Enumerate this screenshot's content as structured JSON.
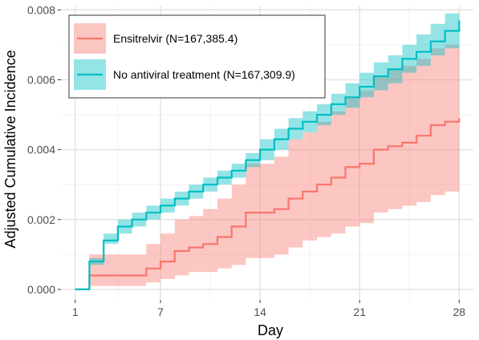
{
  "chart_data": {
    "type": "line",
    "xlabel": "Day",
    "ylabel": "Adjusted Cumulative Incidence",
    "xlim": [
      0,
      29
    ],
    "ylim": [
      -0.0003,
      0.0081
    ],
    "x_ticks": [
      1,
      7,
      14,
      21,
      28
    ],
    "x_tick_labels": [
      "1",
      "7",
      "14",
      "21",
      "28"
    ],
    "y_ticks": [
      0,
      0.002,
      0.004,
      0.006,
      0.008
    ],
    "y_tick_labels": [
      "0.000",
      "0.002",
      "0.004",
      "0.006",
      "0.008"
    ],
    "grid": true,
    "legend_position": "top-left",
    "step": true,
    "x": [
      1,
      2,
      3,
      4,
      5,
      6,
      7,
      8,
      9,
      10,
      11,
      12,
      13,
      14,
      15,
      16,
      17,
      18,
      19,
      20,
      21,
      22,
      23,
      24,
      25,
      26,
      27,
      28
    ],
    "series": [
      {
        "name": "Ensitrelvir (N=167,385.4)",
        "color": "#F8766D",
        "values": [
          0,
          0.0004,
          0.0004,
          0.0004,
          0.0004,
          0.0006,
          0.0008,
          0.0011,
          0.0012,
          0.0013,
          0.0015,
          0.0018,
          0.0022,
          0.0022,
          0.0023,
          0.0026,
          0.0028,
          0.003,
          0.0032,
          0.0035,
          0.0036,
          0.004,
          0.0041,
          0.0042,
          0.0044,
          0.0047,
          0.0048,
          0.0049
        ],
        "lower": [
          0,
          0.0001,
          0.0001,
          0.0001,
          0.0001,
          0.0002,
          0.0003,
          0.0004,
          0.0005,
          0.0005,
          0.0006,
          0.0007,
          0.0009,
          0.0009,
          0.001,
          0.0012,
          0.0014,
          0.0015,
          0.0016,
          0.0018,
          0.0019,
          0.0022,
          0.0023,
          0.0024,
          0.0025,
          0.0027,
          0.0028,
          0.0028
        ],
        "upper": [
          0,
          0.001,
          0.001,
          0.001,
          0.001,
          0.0013,
          0.0016,
          0.002,
          0.0021,
          0.0023,
          0.0026,
          0.003,
          0.0036,
          0.0036,
          0.0038,
          0.0043,
          0.0045,
          0.0048,
          0.0051,
          0.0055,
          0.0057,
          0.0061,
          0.0063,
          0.0064,
          0.0066,
          0.0069,
          0.007,
          0.0071
        ]
      },
      {
        "name": "No antiviral treatment (N=167,309.9)",
        "color": "#00BFC4",
        "values": [
          0,
          0.0008,
          0.0014,
          0.0018,
          0.002,
          0.0022,
          0.0024,
          0.0026,
          0.0028,
          0.003,
          0.0032,
          0.0034,
          0.0037,
          0.004,
          0.0043,
          0.0046,
          0.0048,
          0.005,
          0.0053,
          0.0055,
          0.0058,
          0.0061,
          0.0063,
          0.0066,
          0.0068,
          0.0071,
          0.0074,
          0.0077
        ],
        "lower": [
          0,
          0.0007,
          0.0013,
          0.0016,
          0.0018,
          0.002,
          0.0022,
          0.0024,
          0.0026,
          0.0028,
          0.003,
          0.0032,
          0.0035,
          0.0037,
          0.004,
          0.0043,
          0.0045,
          0.0047,
          0.005,
          0.0052,
          0.0055,
          0.0057,
          0.0059,
          0.0062,
          0.0064,
          0.0067,
          0.0069,
          0.0072
        ],
        "upper": [
          0,
          0.0009,
          0.0016,
          0.002,
          0.0022,
          0.0024,
          0.0026,
          0.0028,
          0.003,
          0.0032,
          0.0034,
          0.0036,
          0.0039,
          0.0043,
          0.0046,
          0.0049,
          0.0051,
          0.0053,
          0.0056,
          0.0059,
          0.0062,
          0.0065,
          0.0067,
          0.007,
          0.0073,
          0.0076,
          0.0079,
          0.0082
        ]
      }
    ]
  }
}
